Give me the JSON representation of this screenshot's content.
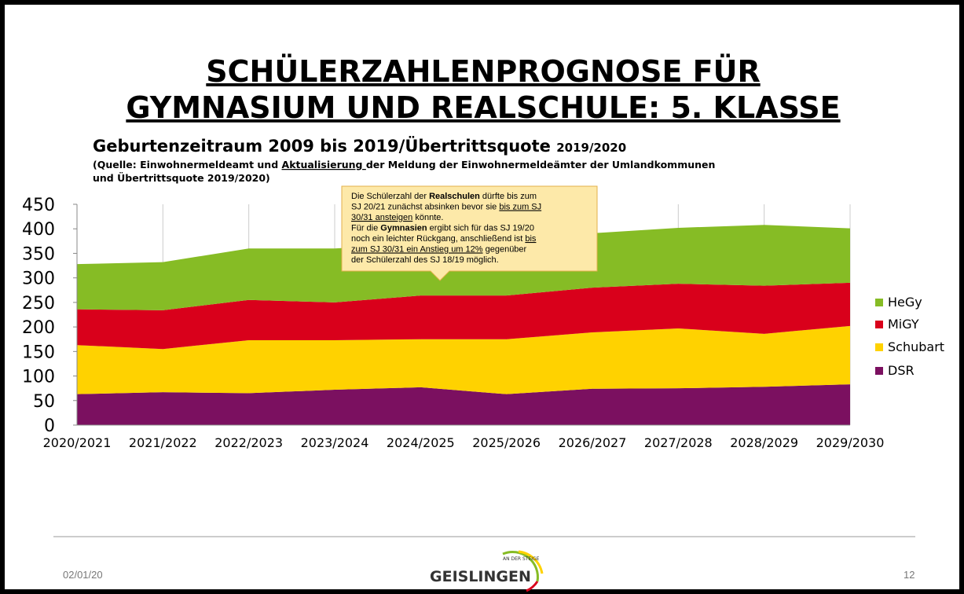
{
  "title_lines": [
    "SCHÜLERZAHLENPROGNOSE FÜR",
    "GYMNASIUM UND REALSCHULE: 5. KLASSE"
  ],
  "subtitle": {
    "main": "Geburtenzeitraum 2009 bis 2019/Übertrittsquote",
    "small": "2019/2020"
  },
  "source": {
    "line1": [
      {
        "text": "(Quelle: Einwohnermeldeamt und "
      },
      {
        "text": "Aktualisierung ",
        "style": "underline"
      },
      {
        "text": "der Meldung der Einwohnermeldeämter der Umlandkommunen"
      }
    ],
    "line2": "und Übertrittsquote 2019/2020)"
  },
  "chart_data": {
    "type": "stacked_area",
    "categories": [
      "2020/2021",
      "2021/2022",
      "2022/2023",
      "2023/2024",
      "2024/2025",
      "2025/2026",
      "2026/2027",
      "2027/2028",
      "2028/2029",
      "2029/2030"
    ],
    "series": [
      {
        "name": "DSR",
        "color": "#7b1060",
        "values": [
          63,
          67,
          65,
          72,
          77,
          63,
          74,
          75,
          78,
          83
        ]
      },
      {
        "name": "Schubart",
        "color": "#ffd200",
        "values": [
          100,
          88,
          108,
          101,
          98,
          112,
          115,
          122,
          108,
          119
        ]
      },
      {
        "name": "MiGY",
        "color": "#d9001b",
        "values": [
          73,
          79,
          82,
          77,
          89,
          89,
          91,
          91,
          98,
          88
        ]
      },
      {
        "name": "HeGy",
        "color": "#86bc25",
        "values": [
          92,
          98,
          105,
          110,
          106,
          116,
          111,
          114,
          124,
          111
        ]
      }
    ],
    "ylim": [
      0,
      450
    ],
    "yticks": [
      0,
      50,
      100,
      150,
      200,
      250,
      300,
      350,
      400,
      450
    ],
    "grid": true,
    "legend": "right",
    "annotation": {
      "lines": [
        [
          {
            "text": "Die Schülerzahl der "
          },
          {
            "text": "Realschulen",
            "style": "bold"
          },
          {
            "text": " dürfte bis zum"
          }
        ],
        [
          {
            "text": "SJ 20/21 zunächst absinken bevor sie "
          },
          {
            "text": "bis zum SJ",
            "style": "underline"
          }
        ],
        [
          {
            "text": "30/31 ansteigen",
            "style": "underline"
          },
          {
            "text": " könnte."
          }
        ],
        [
          {
            "text": "Für die "
          },
          {
            "text": "Gymnasien",
            "style": "bold"
          },
          {
            "text": " ergibt sich für das SJ 19/20"
          }
        ],
        [
          {
            "text": "noch ein leichter Rückgang, anschließend ist "
          },
          {
            "text": "bis",
            "style": "underline"
          }
        ],
        [
          {
            "text": "zum SJ 30/31 ein Anstieg um 12%",
            "style": "underline"
          },
          {
            "text": " gegenüber"
          }
        ],
        [
          {
            "text": "der Schülerzahl des SJ 18/19 möglich."
          }
        ]
      ]
    }
  },
  "footer": {
    "date": "02/01/20",
    "logo_small": "AN DER STEIGE",
    "logo": "GEISLINGEN",
    "page": "12"
  }
}
